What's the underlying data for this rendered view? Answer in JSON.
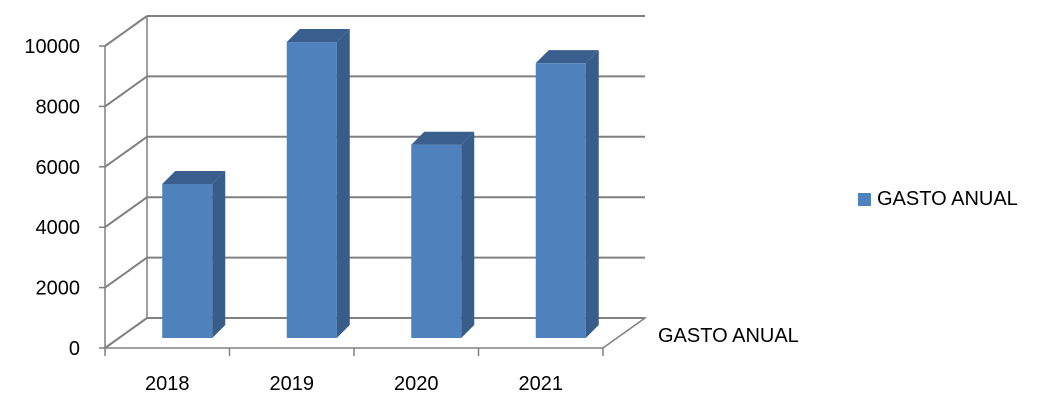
{
  "chart_data": {
    "type": "bar",
    "style": "3d-column",
    "categories": [
      "2018",
      "2019",
      "2020",
      "2021"
    ],
    "series": [
      {
        "name": "GASTO ANUAL",
        "values": [
          5100,
          9800,
          6400,
          9100
        ]
      }
    ],
    "ylim": [
      0,
      10000
    ],
    "yticks": [
      "0",
      "2000",
      "4000",
      "6000",
      "8000",
      "10000"
    ],
    "series_axis_label": "GASTO ANUAL",
    "grid": true,
    "legend": "right",
    "colors": {
      "bar_front": "#4F81BD",
      "bar_side": "#385D8A",
      "bar_top": "#3A5F8E",
      "grid": "#808080"
    }
  }
}
